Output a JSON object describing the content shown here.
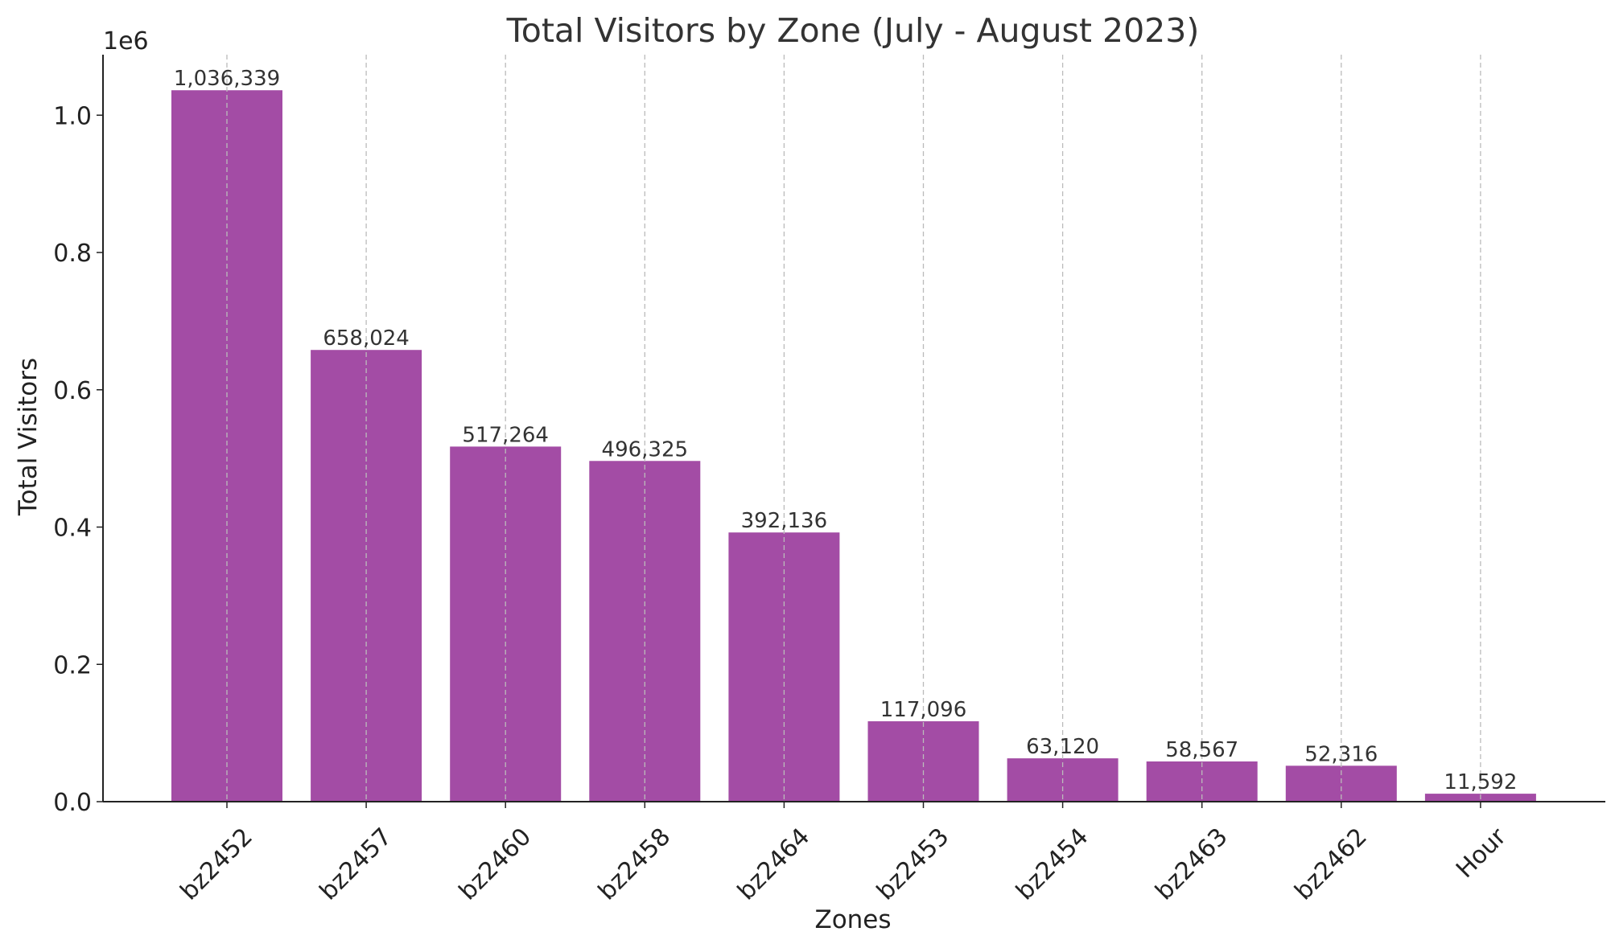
{
  "chart_data": {
    "type": "bar",
    "title": "Total Visitors by Zone (July - August 2023)",
    "xlabel": "Zones",
    "ylabel": "Total Visitors",
    "y_offset_label": "1e6",
    "categories": [
      "bz2452",
      "bz2457",
      "bz2460",
      "bz2458",
      "bz2464",
      "bz2453",
      "bz2454",
      "bz2463",
      "bz2462",
      "Hour"
    ],
    "values": [
      1036339,
      658024,
      517264,
      496325,
      392136,
      117096,
      63120,
      58567,
      52316,
      11592
    ],
    "value_labels": [
      "1,036,339",
      "658,024",
      "517,264",
      "496,325",
      "392,136",
      "117,096",
      "63,120",
      "58,567",
      "52,316",
      "11,592"
    ],
    "ylim": [
      0,
      1088156
    ],
    "yticks": [
      0,
      200000,
      400000,
      600000,
      800000,
      1000000
    ],
    "ytick_labels": [
      "0.0",
      "0.2",
      "0.4",
      "0.6",
      "0.8",
      "1.0"
    ],
    "bar_color": "#a34ca5",
    "grid": "x-only, dashed",
    "legend": "none"
  }
}
